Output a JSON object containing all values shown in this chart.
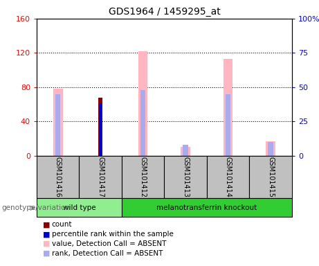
{
  "title": "GDS1964 / 1459295_at",
  "samples": [
    "GSM101416",
    "GSM101417",
    "GSM101412",
    "GSM101413",
    "GSM101414",
    "GSM101415"
  ],
  "pink_values": [
    78,
    0,
    122,
    10,
    113,
    17
  ],
  "dark_red_values": [
    0,
    68,
    0,
    0,
    0,
    0
  ],
  "lavender_values": [
    45,
    0,
    48,
    8,
    45,
    10
  ],
  "blue_values": [
    0,
    38,
    0,
    0,
    0,
    0
  ],
  "groups": [
    {
      "label": "wild type",
      "samples": [
        0,
        1
      ],
      "color": "#90EE90"
    },
    {
      "label": "melanotransferrin knockout",
      "samples": [
        2,
        3,
        4,
        5
      ],
      "color": "#32CD32"
    }
  ],
  "ylim_left": [
    0,
    160
  ],
  "ylim_right": [
    0,
    100
  ],
  "yticks_left": [
    0,
    40,
    80,
    120,
    160
  ],
  "ytick_labels_left": [
    "0",
    "40",
    "80",
    "120",
    "160"
  ],
  "yticks_right": [
    0,
    25,
    50,
    75,
    100
  ],
  "ytick_labels_right": [
    "0",
    "25",
    "50",
    "75",
    "100%"
  ],
  "pink_color": "#FFB6C1",
  "dark_red_color": "#8B0000",
  "lavender_color": "#AAAAEE",
  "blue_color": "#0000CC",
  "legend_items": [
    {
      "color": "#8B0000",
      "label": "count"
    },
    {
      "color": "#0000CC",
      "label": "percentile rank within the sample"
    },
    {
      "color": "#FFB6C1",
      "label": "value, Detection Call = ABSENT"
    },
    {
      "color": "#AAAAEE",
      "label": "rank, Detection Call = ABSENT"
    }
  ],
  "group_label": "genotype/variation",
  "sample_box_color": "#C0C0C0",
  "grid_lines": [
    40,
    80,
    120
  ]
}
